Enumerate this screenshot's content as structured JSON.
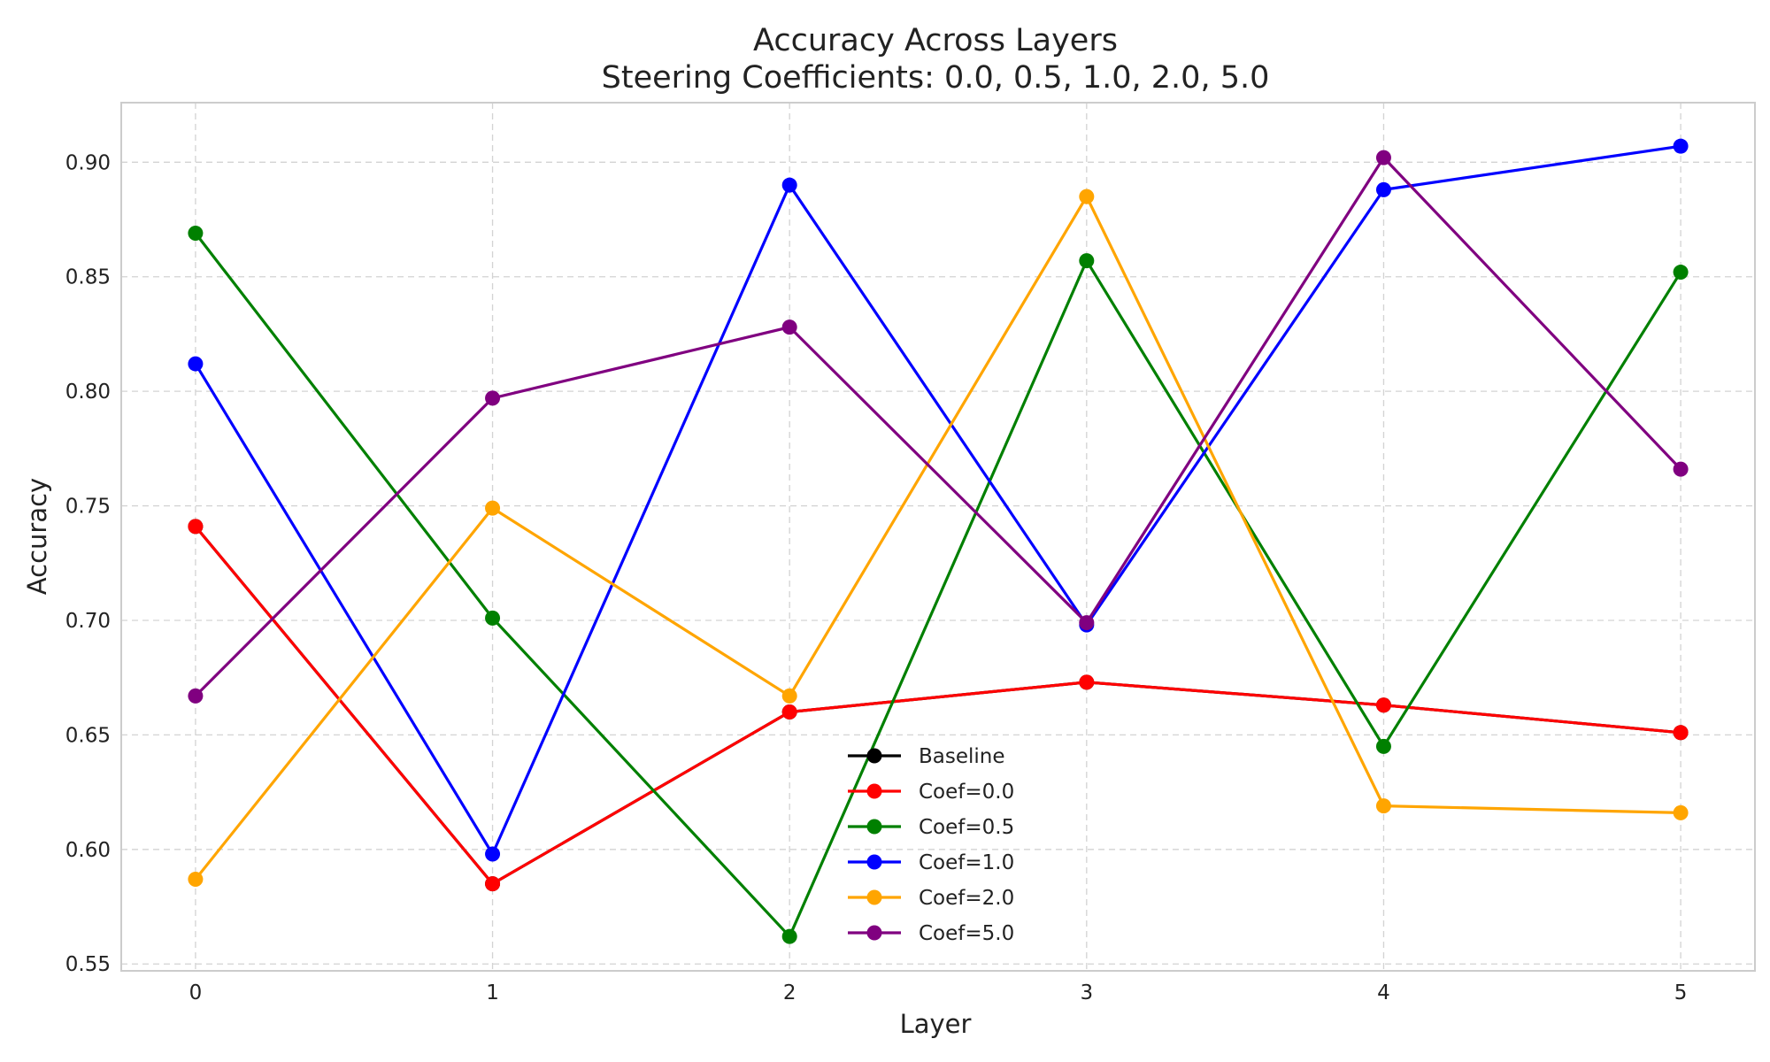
{
  "chart_data": {
    "type": "line",
    "title": "Accuracy Across Layers",
    "subtitle": "Steering Coefficients: 0.0, 0.5, 1.0, 2.0, 5.0",
    "xlabel": "Layer",
    "ylabel": "Accuracy",
    "x": [
      0,
      1,
      2,
      3,
      4,
      5
    ],
    "x_ticks": [
      "0",
      "1",
      "2",
      "3",
      "4",
      "5"
    ],
    "y_ticks": [
      "0.55",
      "0.60",
      "0.65",
      "0.70",
      "0.75",
      "0.80",
      "0.85",
      "0.90"
    ],
    "xlim": [
      -0.25,
      5.25
    ],
    "ylim": [
      0.547,
      0.926
    ],
    "grid": true,
    "legend_position": "lower-center",
    "series": [
      {
        "name": "Baseline",
        "color": "#000000",
        "values": [
          0.741,
          0.585,
          0.66,
          0.673,
          0.663,
          0.651
        ]
      },
      {
        "name": "Coef=0.0",
        "color": "#ff0000",
        "values": [
          0.741,
          0.585,
          0.66,
          0.673,
          0.663,
          0.651
        ]
      },
      {
        "name": "Coef=0.5",
        "color": "#008000",
        "values": [
          0.869,
          0.701,
          0.562,
          0.857,
          0.645,
          0.852
        ]
      },
      {
        "name": "Coef=1.0",
        "color": "#0000ff",
        "values": [
          0.812,
          0.598,
          0.89,
          0.698,
          0.888,
          0.907
        ]
      },
      {
        "name": "Coef=2.0",
        "color": "#ffa500",
        "values": [
          0.587,
          0.749,
          0.667,
          0.885,
          0.619,
          0.616
        ]
      },
      {
        "name": "Coef=5.0",
        "color": "#800080",
        "values": [
          0.667,
          0.797,
          0.828,
          0.699,
          0.902,
          0.766
        ]
      }
    ]
  }
}
